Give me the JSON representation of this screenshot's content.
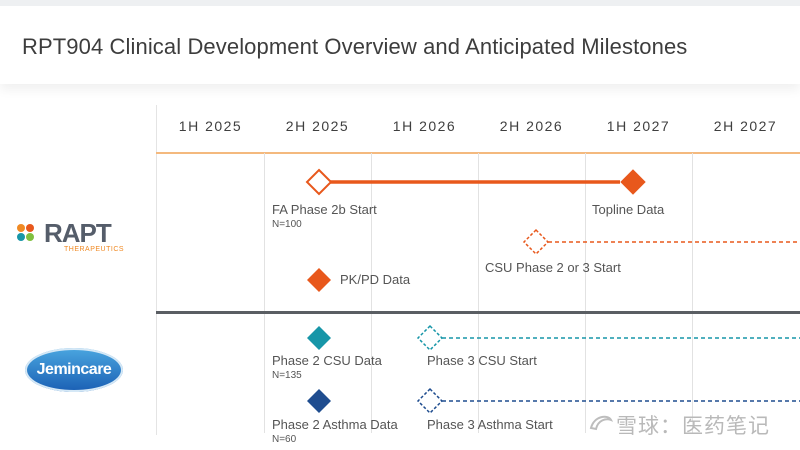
{
  "title": "RPT904 Clinical Development Overview and Anticipated Milestones",
  "periods": [
    "1H 2025",
    "2H 2025",
    "1H 2026",
    "2H 2026",
    "1H 2027",
    "2H 2027"
  ],
  "companies": {
    "rapt": {
      "name": "RAPT",
      "tagline": "THERAPEUTICS"
    },
    "jemincare": {
      "name": "Jemincare"
    }
  },
  "milestones": {
    "fa_phase2b_start": {
      "label": "FA Phase 2b Start",
      "sub": "N=100"
    },
    "topline_data": {
      "label": "Topline Data"
    },
    "csu_phase2or3_start": {
      "label": "CSU Phase 2 or 3 Start"
    },
    "pkpd_data": {
      "label": "PK/PD Data"
    },
    "phase2_csu_data": {
      "label": "Phase 2 CSU Data",
      "sub": "N=135"
    },
    "phase3_csu_start": {
      "label": "Phase 3 CSU Start"
    },
    "phase2_asthma_data": {
      "label": "Phase 2 Asthma Data",
      "sub": "N=60"
    },
    "phase3_asthma_start": {
      "label": "Phase 3 Asthma Start"
    }
  },
  "colors": {
    "orange": "#e8581c",
    "teal": "#1796a8",
    "navy": "#1f4d8f",
    "orange_rule": "#f4b97e",
    "divider": "#5a5e63"
  },
  "watermark": "雪球：医药笔记"
}
